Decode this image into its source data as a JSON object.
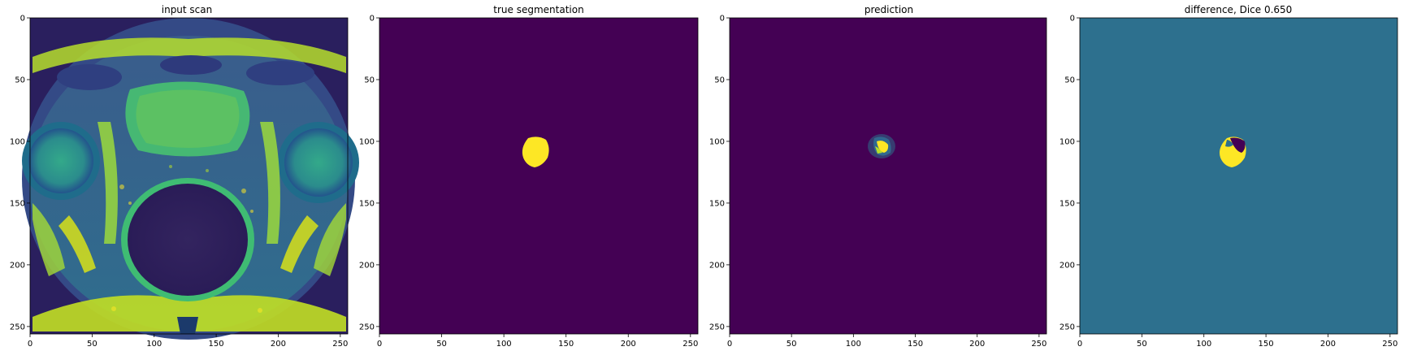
{
  "colors": {
    "background": "#440154",
    "highlight": "#fde725",
    "neutral": "#2d708e",
    "low": "#440154"
  },
  "panels": [
    {
      "title": "input scan",
      "image": "mri-pelvis-scan"
    },
    {
      "title": "true segmentation",
      "image": "segmentation-mask"
    },
    {
      "title": "prediction",
      "image": "prediction-mask"
    },
    {
      "title": "difference, Dice 0.650",
      "image": "difference-map"
    }
  ],
  "axes": {
    "xticks": [
      "0",
      "50",
      "100",
      "150",
      "200",
      "250"
    ],
    "yticks": [
      "0",
      "50",
      "100",
      "150",
      "200",
      "250"
    ]
  }
}
